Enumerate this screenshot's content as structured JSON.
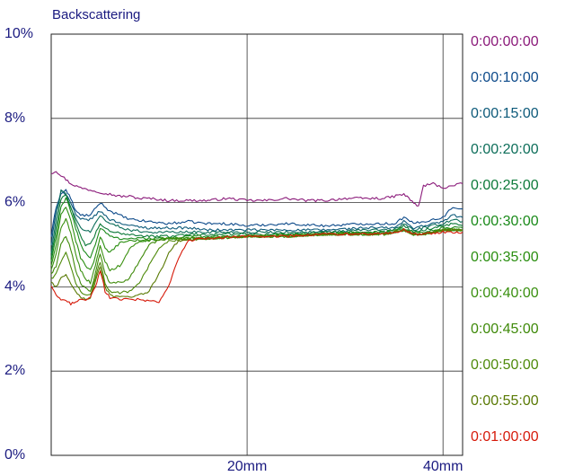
{
  "chart_data": {
    "type": "line",
    "title": "",
    "ylabel": "Backscattering",
    "xlabel": "",
    "xlim": [
      0,
      42
    ],
    "ylim": [
      0,
      10
    ],
    "x_ticks": [
      {
        "value": 20,
        "label": "20mm"
      },
      {
        "value": 40,
        "label": "40mm"
      }
    ],
    "y_ticks": [
      {
        "value": 0,
        "label": "0%"
      },
      {
        "value": 2,
        "label": "2%"
      },
      {
        "value": 4,
        "label": "4%"
      },
      {
        "value": 6,
        "label": "6%"
      },
      {
        "value": 8,
        "label": "8%"
      },
      {
        "value": 10,
        "label": "10%"
      }
    ],
    "grid": true,
    "legend_position": "right",
    "series": [
      {
        "name": "0:00:00:00",
        "color": "#8b1a7a",
        "x": [
          0,
          0.5,
          1,
          1.5,
          2,
          3,
          4,
          5,
          6,
          7,
          8,
          9,
          10,
          12,
          14,
          16,
          18,
          20,
          22,
          24,
          26,
          28,
          30,
          32,
          34,
          35,
          36,
          36.5,
          37,
          37.5,
          38,
          39,
          40,
          41,
          42
        ],
        "y": [
          6.7,
          6.75,
          6.65,
          6.55,
          6.45,
          6.35,
          6.3,
          6.25,
          6.2,
          6.15,
          6.15,
          6.1,
          6.1,
          6.05,
          6.05,
          6.05,
          6.1,
          6.05,
          6.05,
          6.1,
          6.05,
          6.05,
          6.1,
          6.1,
          6.1,
          6.15,
          6.2,
          6.1,
          6.0,
          5.9,
          6.4,
          6.45,
          6.35,
          6.4,
          6.45
        ]
      },
      {
        "name": "0:00:10:00",
        "color": "#0d4a8a",
        "x": [
          0,
          0.5,
          1,
          1.5,
          2,
          2.5,
          3,
          4,
          5,
          6,
          8,
          10,
          12,
          14,
          16,
          18,
          20,
          24,
          28,
          32,
          34,
          35,
          36,
          37,
          38,
          39,
          40,
          41,
          42
        ],
        "y": [
          5.2,
          5.9,
          6.2,
          6.3,
          6.1,
          5.8,
          5.7,
          5.7,
          6.0,
          5.8,
          5.6,
          5.55,
          5.5,
          5.55,
          5.5,
          5.5,
          5.45,
          5.5,
          5.45,
          5.5,
          5.5,
          5.5,
          5.65,
          5.5,
          5.55,
          5.6,
          5.65,
          5.9,
          5.85
        ]
      },
      {
        "name": "0:00:15:00",
        "color": "#0d5a7a",
        "x": [
          0,
          0.5,
          1,
          1.5,
          2,
          2.5,
          3,
          4,
          5,
          6,
          8,
          10,
          12,
          14,
          16,
          20,
          24,
          28,
          32,
          34,
          35,
          36,
          37,
          38,
          39,
          40,
          41,
          42
        ],
        "y": [
          5.0,
          5.8,
          6.3,
          6.2,
          6.0,
          5.7,
          5.6,
          5.6,
          5.8,
          5.6,
          5.45,
          5.4,
          5.4,
          5.4,
          5.35,
          5.35,
          5.35,
          5.35,
          5.4,
          5.4,
          5.4,
          5.55,
          5.4,
          5.45,
          5.5,
          5.55,
          5.7,
          5.65
        ]
      },
      {
        "name": "0:00:20:00",
        "color": "#0d6e5a",
        "x": [
          0,
          0.5,
          1,
          1.5,
          2,
          2.5,
          3,
          4,
          5,
          6,
          8,
          10,
          12,
          14,
          16,
          20,
          24,
          28,
          32,
          34,
          35,
          36,
          37,
          38,
          39,
          40,
          41,
          42
        ],
        "y": [
          4.8,
          5.6,
          6.3,
          6.2,
          5.9,
          5.6,
          5.4,
          5.3,
          5.7,
          5.5,
          5.35,
          5.3,
          5.3,
          5.3,
          5.3,
          5.3,
          5.3,
          5.3,
          5.35,
          5.35,
          5.35,
          5.5,
          5.35,
          5.4,
          5.45,
          5.5,
          5.6,
          5.55
        ]
      },
      {
        "name": "0:00:25:00",
        "color": "#0d7a3a",
        "x": [
          0,
          0.5,
          1,
          1.5,
          2,
          2.5,
          3,
          3.5,
          4,
          5,
          6,
          8,
          10,
          12,
          14,
          16,
          20,
          24,
          28,
          32,
          34,
          35,
          36,
          37,
          38,
          39,
          40,
          41,
          42
        ],
        "y": [
          4.7,
          5.4,
          6.1,
          6.2,
          5.9,
          5.5,
          5.2,
          5.0,
          5.0,
          5.5,
          5.3,
          5.25,
          5.2,
          5.2,
          5.25,
          5.25,
          5.25,
          5.25,
          5.3,
          5.3,
          5.3,
          5.3,
          5.45,
          5.3,
          5.35,
          5.4,
          5.45,
          5.5,
          5.45
        ]
      },
      {
        "name": "0:00:30:00",
        "color": "#1a8a1a",
        "x": [
          0,
          0.5,
          1,
          1.5,
          2,
          2.5,
          3,
          3.5,
          4,
          4.5,
          5,
          6,
          7,
          8,
          10,
          12,
          14,
          16,
          20,
          24,
          28,
          32,
          34,
          36,
          37,
          38,
          40,
          42
        ],
        "y": [
          4.6,
          5.2,
          5.9,
          6.1,
          5.8,
          5.4,
          5.0,
          4.8,
          4.7,
          5.0,
          5.4,
          5.2,
          5.15,
          5.15,
          5.15,
          5.15,
          5.2,
          5.2,
          5.2,
          5.25,
          5.25,
          5.3,
          5.3,
          5.4,
          5.3,
          5.3,
          5.4,
          5.4
        ]
      },
      {
        "name": "0:00:35:00",
        "color": "#2a8e10",
        "x": [
          0,
          0.5,
          1,
          1.5,
          2,
          2.5,
          3,
          3.5,
          4,
          4.5,
          5,
          5.5,
          6,
          7,
          8,
          9,
          10,
          12,
          16,
          20,
          24,
          28,
          32,
          34,
          36,
          37,
          38,
          40,
          42
        ],
        "y": [
          4.5,
          5.0,
          5.7,
          5.9,
          5.6,
          5.1,
          4.7,
          4.5,
          4.4,
          4.7,
          5.2,
          4.9,
          4.8,
          5.05,
          5.1,
          5.1,
          5.1,
          5.15,
          5.15,
          5.2,
          5.2,
          5.25,
          5.25,
          5.25,
          5.35,
          5.25,
          5.25,
          5.35,
          5.35
        ]
      },
      {
        "name": "0:00:40:00",
        "color": "#3a9010",
        "x": [
          0,
          0.5,
          1,
          1.5,
          2,
          2.5,
          3,
          3.5,
          4,
          4.5,
          5,
          5.5,
          6,
          7,
          8,
          9,
          10,
          12,
          16,
          20,
          24,
          28,
          32,
          34,
          36,
          37,
          38,
          40,
          42
        ],
        "y": [
          4.4,
          4.8,
          5.4,
          5.6,
          5.3,
          4.8,
          4.4,
          4.2,
          4.1,
          4.5,
          5.0,
          4.6,
          4.4,
          4.5,
          4.9,
          5.1,
          5.1,
          5.15,
          5.15,
          5.2,
          5.2,
          5.25,
          5.25,
          5.25,
          5.35,
          5.25,
          5.25,
          5.35,
          5.35
        ]
      },
      {
        "name": "0:00:45:00",
        "color": "#3f8a0a",
        "x": [
          0,
          0.5,
          1,
          1.5,
          2,
          2.5,
          3,
          3.5,
          4,
          4.5,
          5,
          5.5,
          6,
          7,
          8,
          9,
          10,
          11,
          12,
          16,
          20,
          24,
          28,
          32,
          34,
          36,
          37,
          38,
          40,
          42
        ],
        "y": [
          4.3,
          4.5,
          5.0,
          5.2,
          4.9,
          4.4,
          4.1,
          3.95,
          3.9,
          4.3,
          4.8,
          4.3,
          4.1,
          4.1,
          4.2,
          4.6,
          5.0,
          5.1,
          5.15,
          5.15,
          5.2,
          5.2,
          5.25,
          5.25,
          5.25,
          5.35,
          5.25,
          5.25,
          5.35,
          5.35
        ]
      },
      {
        "name": "0:00:50:00",
        "color": "#4e8a0a",
        "x": [
          0,
          0.5,
          1,
          1.5,
          2,
          2.5,
          3,
          3.5,
          4,
          4.5,
          5,
          5.5,
          6,
          7,
          8,
          9,
          10,
          11,
          12,
          16,
          20,
          24,
          28,
          32,
          34,
          36,
          37,
          38,
          40,
          42
        ],
        "y": [
          4.2,
          4.3,
          4.6,
          4.8,
          4.5,
          4.1,
          3.9,
          3.8,
          3.8,
          4.2,
          4.6,
          4.1,
          3.9,
          3.85,
          3.9,
          4.1,
          4.5,
          4.9,
          5.1,
          5.15,
          5.2,
          5.2,
          5.25,
          5.25,
          5.25,
          5.35,
          5.25,
          5.25,
          5.35,
          5.35
        ]
      },
      {
        "name": "0:00:55:00",
        "color": "#5a7a05",
        "x": [
          0,
          0.5,
          1,
          1.5,
          2,
          2.5,
          3,
          3.5,
          4,
          4.5,
          5,
          5.5,
          6,
          7,
          8,
          9,
          10,
          11,
          12,
          13,
          16,
          20,
          24,
          28,
          32,
          34,
          36,
          37,
          38,
          40,
          42
        ],
        "y": [
          4.1,
          4.0,
          4.2,
          4.3,
          4.1,
          3.9,
          3.75,
          3.7,
          3.75,
          4.1,
          4.5,
          4.0,
          3.8,
          3.75,
          3.75,
          3.8,
          3.9,
          4.3,
          4.8,
          5.1,
          5.15,
          5.2,
          5.2,
          5.25,
          5.25,
          5.25,
          5.35,
          5.25,
          5.25,
          5.35,
          5.35
        ]
      },
      {
        "name": "0:01:00:00",
        "color": "#d61a0a",
        "x": [
          0,
          0.5,
          1,
          1.5,
          2,
          2.5,
          3,
          3.5,
          4,
          4.5,
          5,
          5.5,
          6,
          7,
          8,
          9,
          10,
          11,
          12,
          13,
          14,
          16,
          20,
          24,
          28,
          32,
          34,
          36,
          37,
          38,
          40,
          42
        ],
        "y": [
          4.0,
          3.8,
          3.7,
          3.65,
          3.6,
          3.65,
          3.7,
          3.7,
          3.75,
          4.0,
          4.4,
          3.9,
          3.75,
          3.7,
          3.7,
          3.7,
          3.65,
          3.65,
          4.0,
          4.7,
          5.1,
          5.15,
          5.2,
          5.2,
          5.25,
          5.25,
          5.25,
          5.35,
          5.25,
          5.25,
          5.3,
          5.3
        ]
      }
    ]
  }
}
